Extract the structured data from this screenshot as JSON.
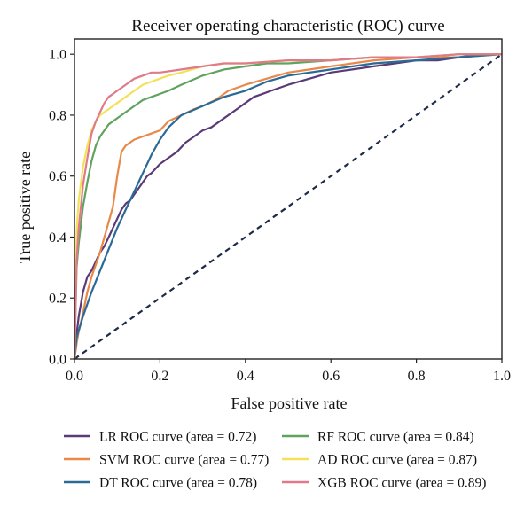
{
  "chart_data": {
    "type": "line",
    "title": "Receiver operating characteristic (ROC) curve",
    "xlabel": "False positive rate",
    "ylabel": "True positive rate",
    "xlim": [
      0,
      1
    ],
    "ylim": [
      0,
      1.05
    ],
    "xticks": [
      "0.0",
      "0.2",
      "0.4",
      "0.6",
      "0.8",
      "1.0"
    ],
    "yticks": [
      "0.0",
      "0.2",
      "0.4",
      "0.6",
      "0.8",
      "1.0"
    ],
    "grid": false,
    "legend_position": "bottom",
    "reference_line": {
      "style": "dashed",
      "color": "#1e2a4a",
      "points": [
        [
          0,
          0
        ],
        [
          1,
          1
        ]
      ]
    },
    "series": [
      {
        "name": "LR ROC curve (area = 0.72)",
        "color": "#5b3a78",
        "x": [
          0,
          0.005,
          0.01,
          0.02,
          0.03,
          0.04,
          0.05,
          0.06,
          0.07,
          0.08,
          0.09,
          0.1,
          0.11,
          0.12,
          0.13,
          0.14,
          0.15,
          0.16,
          0.17,
          0.18,
          0.2,
          0.22,
          0.24,
          0.26,
          0.28,
          0.3,
          0.32,
          0.34,
          0.36,
          0.38,
          0.4,
          0.42,
          0.44,
          0.46,
          0.5,
          0.55,
          0.6,
          0.65,
          0.7,
          0.75,
          0.8,
          0.85,
          0.9,
          0.95,
          1.0
        ],
        "y": [
          0.0,
          0.08,
          0.14,
          0.22,
          0.27,
          0.29,
          0.32,
          0.35,
          0.37,
          0.4,
          0.43,
          0.46,
          0.49,
          0.51,
          0.52,
          0.54,
          0.56,
          0.58,
          0.6,
          0.61,
          0.64,
          0.66,
          0.68,
          0.71,
          0.73,
          0.75,
          0.76,
          0.78,
          0.8,
          0.82,
          0.84,
          0.86,
          0.87,
          0.88,
          0.9,
          0.92,
          0.94,
          0.95,
          0.96,
          0.97,
          0.98,
          0.98,
          0.99,
          1.0,
          1.0
        ]
      },
      {
        "name": "SVM ROC curve (area = 0.77)",
        "color": "#e8894a",
        "x": [
          0,
          0.005,
          0.01,
          0.02,
          0.03,
          0.04,
          0.05,
          0.06,
          0.07,
          0.08,
          0.09,
          0.1,
          0.11,
          0.12,
          0.14,
          0.16,
          0.18,
          0.2,
          0.22,
          0.25,
          0.28,
          0.3,
          0.33,
          0.36,
          0.4,
          0.45,
          0.5,
          0.55,
          0.6,
          0.65,
          0.7,
          0.8,
          0.9,
          1.0
        ],
        "y": [
          0.0,
          0.05,
          0.09,
          0.15,
          0.22,
          0.27,
          0.31,
          0.35,
          0.4,
          0.45,
          0.5,
          0.6,
          0.68,
          0.7,
          0.72,
          0.73,
          0.74,
          0.75,
          0.78,
          0.8,
          0.82,
          0.83,
          0.85,
          0.88,
          0.9,
          0.92,
          0.94,
          0.95,
          0.96,
          0.97,
          0.98,
          0.99,
          0.99,
          1.0
        ]
      },
      {
        "name": "DT ROC curve (area = 0.78)",
        "color": "#2b6a96",
        "x": [
          0,
          0.005,
          0.02,
          0.04,
          0.06,
          0.08,
          0.1,
          0.12,
          0.14,
          0.16,
          0.18,
          0.2,
          0.22,
          0.25,
          0.3,
          0.35,
          0.4,
          0.45,
          0.5,
          0.6,
          0.7,
          0.8,
          0.9,
          1.0
        ],
        "y": [
          0.0,
          0.07,
          0.14,
          0.22,
          0.29,
          0.36,
          0.43,
          0.49,
          0.55,
          0.61,
          0.67,
          0.72,
          0.76,
          0.8,
          0.83,
          0.86,
          0.88,
          0.91,
          0.93,
          0.95,
          0.97,
          0.98,
          0.99,
          1.0
        ]
      },
      {
        "name": "RF ROC curve (area = 0.84)",
        "color": "#5ea35e",
        "x": [
          0,
          0.005,
          0.01,
          0.02,
          0.03,
          0.04,
          0.05,
          0.06,
          0.07,
          0.08,
          0.1,
          0.12,
          0.14,
          0.16,
          0.18,
          0.2,
          0.22,
          0.25,
          0.3,
          0.35,
          0.4,
          0.45,
          0.5,
          0.6,
          0.7,
          0.8,
          0.9,
          1.0
        ],
        "y": [
          0.0,
          0.3,
          0.38,
          0.5,
          0.58,
          0.65,
          0.7,
          0.73,
          0.75,
          0.77,
          0.79,
          0.81,
          0.83,
          0.85,
          0.86,
          0.87,
          0.88,
          0.9,
          0.93,
          0.95,
          0.96,
          0.97,
          0.97,
          0.98,
          0.99,
          0.99,
          1.0,
          1.0
        ]
      },
      {
        "name": "AD ROC curve (area = 0.87)",
        "color": "#f2e15a",
        "x": [
          0,
          0.005,
          0.01,
          0.02,
          0.03,
          0.04,
          0.05,
          0.06,
          0.07,
          0.08,
          0.1,
          0.12,
          0.14,
          0.16,
          0.18,
          0.2,
          0.22,
          0.25,
          0.3,
          0.35,
          0.4,
          0.5,
          0.6,
          0.7,
          0.8,
          0.9,
          1.0
        ],
        "y": [
          0.0,
          0.42,
          0.52,
          0.63,
          0.7,
          0.75,
          0.78,
          0.8,
          0.81,
          0.82,
          0.84,
          0.86,
          0.88,
          0.9,
          0.91,
          0.92,
          0.93,
          0.94,
          0.96,
          0.97,
          0.97,
          0.98,
          0.98,
          0.99,
          0.99,
          1.0,
          1.0
        ]
      },
      {
        "name": "XGB ROC curve (area = 0.89)",
        "color": "#e07a8a",
        "x": [
          0,
          0.005,
          0.01,
          0.02,
          0.03,
          0.04,
          0.05,
          0.06,
          0.07,
          0.08,
          0.09,
          0.1,
          0.12,
          0.14,
          0.16,
          0.18,
          0.2,
          0.25,
          0.3,
          0.35,
          0.4,
          0.5,
          0.6,
          0.7,
          0.8,
          0.9,
          1.0
        ],
        "y": [
          0.0,
          0.32,
          0.43,
          0.57,
          0.66,
          0.74,
          0.78,
          0.81,
          0.84,
          0.86,
          0.87,
          0.88,
          0.9,
          0.92,
          0.93,
          0.94,
          0.94,
          0.95,
          0.96,
          0.97,
          0.97,
          0.98,
          0.98,
          0.99,
          0.99,
          1.0,
          1.0
        ]
      }
    ]
  }
}
